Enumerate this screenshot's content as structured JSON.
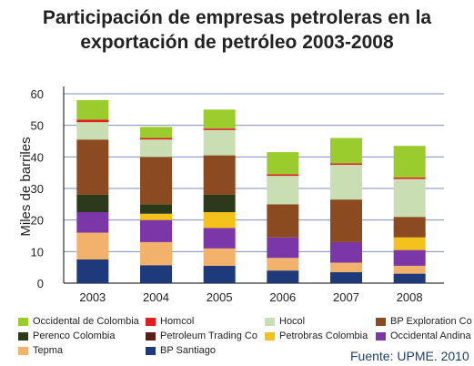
{
  "title_line1": "Participación de empresas petroleras en la",
  "title_line2": "exportación de petróleo 2003-2008",
  "source": "Fuente: UPME. 2010",
  "chart_data": {
    "type": "bar",
    "stacked": true,
    "title": "Participación de empresas petroleras en la exportación de petróleo 2003-2008",
    "xlabel": "",
    "ylabel": "Miles de barriles",
    "ylim": [
      0,
      60
    ],
    "yticks": [
      0,
      10,
      20,
      30,
      40,
      50,
      60
    ],
    "categories": [
      "2003",
      "2004",
      "2005",
      "2006",
      "2007",
      "2008"
    ],
    "grid": true,
    "legend_position": "bottom",
    "series": [
      {
        "name": "BP Santiago",
        "color": "#1f3a7a",
        "values": [
          7.5,
          5.7,
          5.5,
          4.0,
          3.5,
          3.0
        ]
      },
      {
        "name": "Tepma",
        "color": "#f2b26c",
        "values": [
          8.5,
          7.3,
          5.5,
          4.0,
          3.0,
          2.5
        ]
      },
      {
        "name": "Occidental Andina",
        "color": "#7b36a8",
        "values": [
          6.5,
          7.0,
          6.5,
          6.5,
          6.5,
          5.0
        ]
      },
      {
        "name": "Petrobras Colombia",
        "color": "#f5c21b",
        "values": [
          0.0,
          2.0,
          5.0,
          0.0,
          0.0,
          4.0
        ]
      },
      {
        "name": "Perenco Colombia",
        "color": "#2a3a1a",
        "values": [
          5.5,
          3.0,
          5.5,
          0.0,
          0.0,
          0.0
        ]
      },
      {
        "name": "Petroleum Trading Co",
        "color": "#5a1e1a",
        "values": [
          0.0,
          0.0,
          0.0,
          0.0,
          0.0,
          0.0
        ]
      },
      {
        "name": "BP Exploration Co",
        "color": "#8b4a1f",
        "values": [
          17.5,
          15.0,
          12.5,
          10.5,
          13.5,
          6.5
        ]
      },
      {
        "name": "Hocol",
        "color": "#c9dfb3",
        "values": [
          5.5,
          5.5,
          8.0,
          9.0,
          11.0,
          12.0
        ]
      },
      {
        "name": "Homcol",
        "color": "#e02020",
        "values": [
          0.8,
          0.5,
          0.5,
          0.5,
          0.5,
          0.5
        ]
      },
      {
        "name": "Occidental de Colombia",
        "color": "#9acc2e",
        "values": [
          6.2,
          3.5,
          6.0,
          7.0,
          8.0,
          10.0
        ]
      }
    ],
    "legend_order": [
      "Occidental de Colombia",
      "Homcol",
      "Hocol",
      "BP Exploration Co",
      "Perenco Colombia",
      "Petroleum Trading Co",
      "Petrobras Colombia",
      "Occidental Andina",
      "Tepma",
      "BP Santiago"
    ]
  }
}
